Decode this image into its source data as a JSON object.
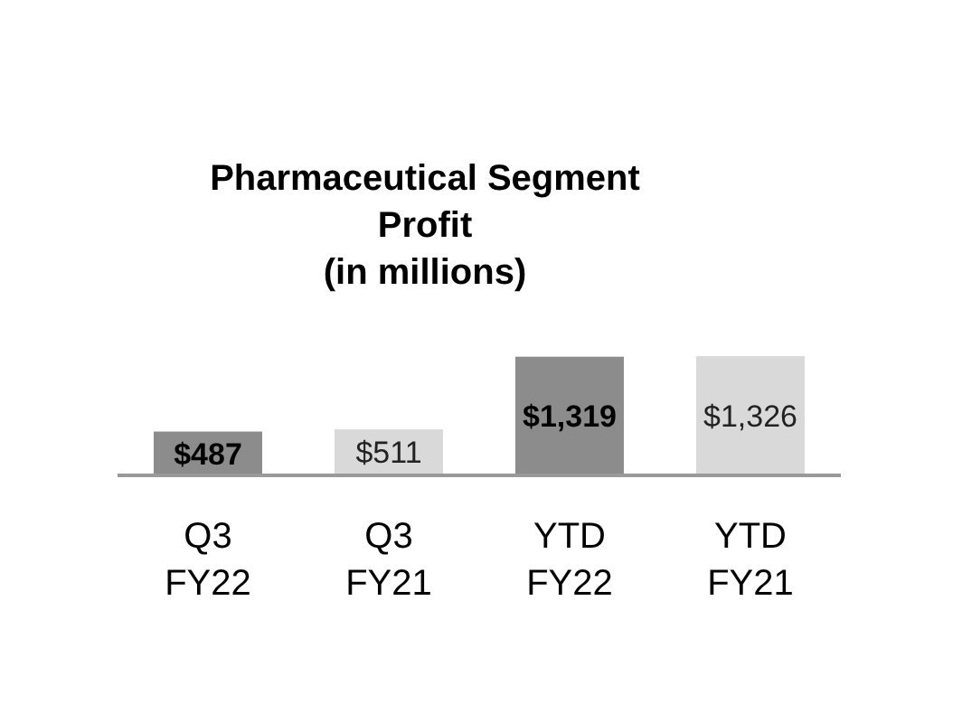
{
  "chart_data": {
    "type": "bar",
    "title": "Pharmaceutical Segment\nProfit\n(in millions)",
    "categories": [
      "Q3\nFY22",
      "Q3\nFY21",
      "YTD\nFY22",
      "YTD\nFY21"
    ],
    "values": [
      487,
      511,
      1319,
      1326
    ],
    "colors": [
      "#8c8c8c",
      "#d9d9d9",
      "#8c8c8c",
      "#d9d9d9"
    ],
    "value_labels": [
      "$487",
      "$511",
      "$1,319",
      "$1,326"
    ]
  }
}
